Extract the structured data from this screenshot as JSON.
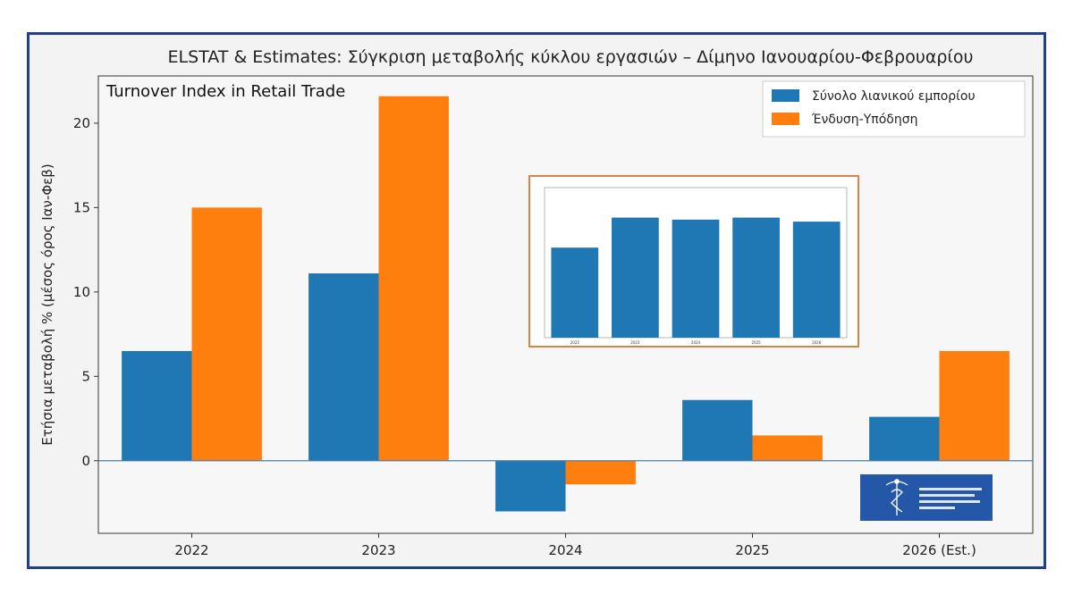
{
  "colors": {
    "series_1": "#1f77b4",
    "series_2": "#ff7f0e",
    "frame": "#1f3f8a",
    "inset_border": "#d9824a",
    "logo_bg": "#2457a8"
  },
  "chart_data": {
    "type": "bar",
    "title": "ELSTAT & Estimates: Σύγκριση μεταβολής κύκλου εργασιών – Δίμηνο Ιανουαρίου-Φεβρουαρίου",
    "annotation": "Turnover Index in Retail Trade",
    "ylabel": "Ετήσια μεταβολή % (μέσος όρος Ιαν-Φεβ)",
    "xlabel": "",
    "categories": [
      "2022",
      "2023",
      "2024",
      "2025",
      "2026 (Est.)"
    ],
    "series": [
      {
        "name": "Σύνολο λιανικού εμπορίου",
        "values": [
          6.5,
          11.1,
          -3.0,
          3.6,
          2.6
        ]
      },
      {
        "name": "Ένδυση-Υπόδηση",
        "values": [
          15.0,
          21.6,
          -1.4,
          1.5,
          6.5
        ]
      }
    ],
    "ylim": [
      -4.3,
      22.8
    ],
    "yticks": [
      0,
      5,
      10,
      15,
      20
    ],
    "grid": false,
    "legend_position": "top-right",
    "zero_line": true
  },
  "inset_chart": {
    "type": "bar",
    "categories": [
      "2022",
      "2023",
      "2024",
      "2025",
      "2026"
    ],
    "values": [
      4.5,
      6.0,
      5.9,
      6.0,
      5.8
    ],
    "ylim": [
      0,
      7.5
    ]
  },
  "logo": {
    "name": "chamber-logo"
  }
}
